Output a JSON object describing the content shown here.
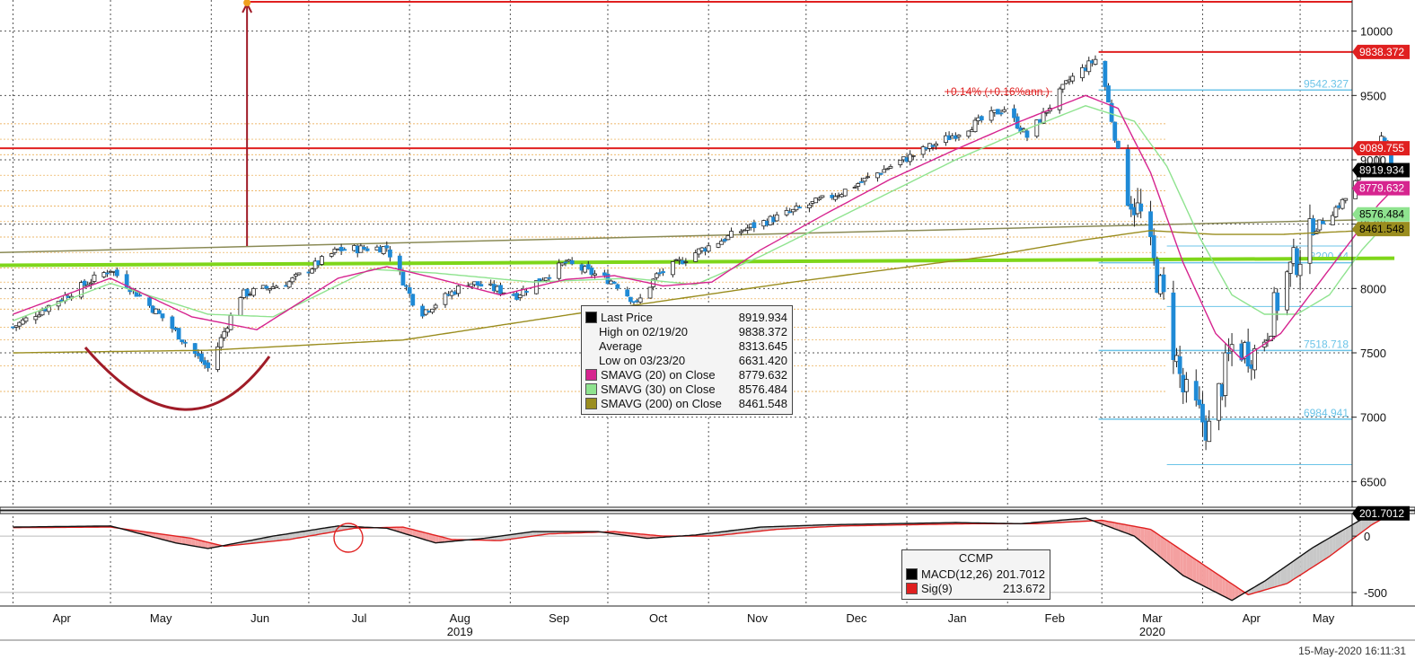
{
  "timestamp": "15-May-2020 16:11:31",
  "colors": {
    "up": "#ffffff",
    "down": "#1f8ad6",
    "sma20": "#d6248f",
    "sma30": "#8fe38f",
    "sma200": "#9a8d1f",
    "resistance": "#e02020",
    "fib": "#6cc4e8",
    "green_line": "#7fd61a",
    "annotation": "#a01c28",
    "macd": "#111111",
    "signal": "#e02020"
  },
  "chart_data": [
    {
      "type": "candlestick",
      "y_axis": {
        "ticks": [
          "10000",
          "9500",
          "9000",
          "8500",
          "8000",
          "7500",
          "7000",
          "6500"
        ],
        "range": [
          6300,
          10200
        ]
      },
      "x_axis": {
        "months": [
          "Apr",
          "May",
          "Jun",
          "Jul",
          "Aug",
          "Sep",
          "Oct",
          "Nov",
          "Dec",
          "Jan",
          "Feb",
          "Mar",
          "Apr",
          "May"
        ],
        "years": [
          "2019",
          "2020"
        ],
        "range_days": [
          -4,
          412
        ]
      },
      "anchors": [
        {
          "d": 0,
          "close": 7700
        },
        {
          "d": 30,
          "close": 8150
        },
        {
          "d": 47,
          "close": 7750
        },
        {
          "d": 60,
          "close": 7380
        },
        {
          "d": 70,
          "close": 7950
        },
        {
          "d": 85,
          "close": 8050
        },
        {
          "d": 100,
          "close": 8300
        },
        {
          "d": 115,
          "close": 8320
        },
        {
          "d": 125,
          "close": 7800
        },
        {
          "d": 140,
          "close": 8050
        },
        {
          "d": 155,
          "close": 7950
        },
        {
          "d": 170,
          "close": 8200
        },
        {
          "d": 185,
          "close": 8050
        },
        {
          "d": 192,
          "close": 7880
        },
        {
          "d": 198,
          "close": 8100
        },
        {
          "d": 210,
          "close": 8280
        },
        {
          "d": 225,
          "close": 8460
        },
        {
          "d": 240,
          "close": 8600
        },
        {
          "d": 255,
          "close": 8750
        },
        {
          "d": 270,
          "close": 8950
        },
        {
          "d": 290,
          "close": 9200
        },
        {
          "d": 305,
          "close": 9400
        },
        {
          "d": 312,
          "close": 9180
        },
        {
          "d": 325,
          "close": 9620
        },
        {
          "d": 333,
          "close": 9780
        },
        {
          "d": 336,
          "close": 9570
        },
        {
          "d": 342,
          "close": 8800
        },
        {
          "d": 347,
          "close": 8560
        },
        {
          "d": 354,
          "close": 7900
        },
        {
          "d": 360,
          "close": 7200
        },
        {
          "d": 368,
          "close": 6900
        },
        {
          "d": 375,
          "close": 7550
        },
        {
          "d": 383,
          "close": 7500
        },
        {
          "d": 392,
          "close": 8100
        },
        {
          "d": 400,
          "close": 8450
        },
        {
          "d": 410,
          "close": 8700
        },
        {
          "d": 421,
          "close": 9150
        },
        {
          "d": 425,
          "close": 8920
        }
      ],
      "sma20": [
        {
          "d": 0,
          "v": 7800
        },
        {
          "d": 30,
          "v": 8080
        },
        {
          "d": 55,
          "v": 7780
        },
        {
          "d": 75,
          "v": 7680
        },
        {
          "d": 100,
          "v": 8080
        },
        {
          "d": 115,
          "v": 8170
        },
        {
          "d": 130,
          "v": 8080
        },
        {
          "d": 150,
          "v": 7950
        },
        {
          "d": 170,
          "v": 8070
        },
        {
          "d": 185,
          "v": 8100
        },
        {
          "d": 200,
          "v": 8020
        },
        {
          "d": 215,
          "v": 8050
        },
        {
          "d": 230,
          "v": 8300
        },
        {
          "d": 250,
          "v": 8580
        },
        {
          "d": 270,
          "v": 8850
        },
        {
          "d": 290,
          "v": 9080
        },
        {
          "d": 310,
          "v": 9300
        },
        {
          "d": 330,
          "v": 9500
        },
        {
          "d": 340,
          "v": 9400
        },
        {
          "d": 350,
          "v": 8900
        },
        {
          "d": 360,
          "v": 8200
        },
        {
          "d": 370,
          "v": 7650
        },
        {
          "d": 378,
          "v": 7450
        },
        {
          "d": 390,
          "v": 7650
        },
        {
          "d": 405,
          "v": 8150
        },
        {
          "d": 420,
          "v": 8650
        },
        {
          "d": 425,
          "v": 8780
        }
      ],
      "sma30": [
        {
          "d": 0,
          "v": 7750
        },
        {
          "d": 30,
          "v": 8040
        },
        {
          "d": 60,
          "v": 7800
        },
        {
          "d": 80,
          "v": 7780
        },
        {
          "d": 110,
          "v": 8150
        },
        {
          "d": 130,
          "v": 8120
        },
        {
          "d": 160,
          "v": 8050
        },
        {
          "d": 190,
          "v": 8080
        },
        {
          "d": 210,
          "v": 8030
        },
        {
          "d": 230,
          "v": 8250
        },
        {
          "d": 250,
          "v": 8500
        },
        {
          "d": 270,
          "v": 8750
        },
        {
          "d": 290,
          "v": 9000
        },
        {
          "d": 310,
          "v": 9220
        },
        {
          "d": 330,
          "v": 9420
        },
        {
          "d": 345,
          "v": 9300
        },
        {
          "d": 355,
          "v": 8950
        },
        {
          "d": 365,
          "v": 8400
        },
        {
          "d": 375,
          "v": 7950
        },
        {
          "d": 385,
          "v": 7800
        },
        {
          "d": 395,
          "v": 7800
        },
        {
          "d": 405,
          "v": 7950
        },
        {
          "d": 415,
          "v": 8300
        },
        {
          "d": 425,
          "v": 8576
        }
      ],
      "sma200": [
        {
          "d": 0,
          "v": 7500
        },
        {
          "d": 60,
          "v": 7520
        },
        {
          "d": 120,
          "v": 7600
        },
        {
          "d": 180,
          "v": 7830
        },
        {
          "d": 240,
          "v": 8050
        },
        {
          "d": 300,
          "v": 8250
        },
        {
          "d": 330,
          "v": 8380
        },
        {
          "d": 350,
          "v": 8450
        },
        {
          "d": 370,
          "v": 8420
        },
        {
          "d": 390,
          "v": 8420
        },
        {
          "d": 425,
          "v": 8461
        }
      ],
      "trend_lines": [
        {
          "from": {
            "d": -4,
            "v": 8280
          },
          "to": {
            "d": 425,
            "v": 8540
          },
          "color": "#8a8a55"
        },
        {
          "from": {
            "d": -4,
            "v": 8180
          },
          "to": {
            "d": 425,
            "v": 8235
          },
          "color": "#7fd61a"
        }
      ],
      "resistance_levels": [
        {
          "label": "9838.372",
          "v": 9838.372
        },
        {
          "label": "9089.755",
          "v": 9089.755
        }
      ],
      "fib_levels": [
        {
          "label": "9542.327",
          "v": 9542.327
        },
        {
          "label": "8200.44",
          "v": 8200.44
        },
        {
          "label": "7518.718",
          "v": 7518.718
        },
        {
          "label": "6984.941",
          "v": 6984.941
        }
      ],
      "extra_levels": [
        {
          "v": 8330
        },
        {
          "v": 7860
        },
        {
          "v": 6631.42
        }
      ],
      "price_tags": [
        {
          "label": "9838.372",
          "v": 9838.372,
          "bg": "#e02020",
          "fg": "#ffffff"
        },
        {
          "label": "9089.755",
          "v": 9089.755,
          "bg": "#e02020",
          "fg": "#ffffff"
        },
        {
          "label": "8919.934",
          "v": 8919.934,
          "bg": "#000000",
          "fg": "#ffffff"
        },
        {
          "label": "8779.632",
          "v": 8779.632,
          "bg": "#d6248f",
          "fg": "#ffffff"
        },
        {
          "label": "8576.484",
          "v": 8576.484,
          "bg": "#8fe38f",
          "fg": "#000000"
        },
        {
          "label": "8461.548",
          "v": 8461.548,
          "bg": "#9a8d1f",
          "fg": "#000000"
        }
      ],
      "annotation_text": "+0.14% (+0.16%ann.)",
      "legend": [
        {
          "label": "Last Price",
          "value": "8919.934",
          "swatch": "#000000"
        },
        {
          "label": "High on 02/19/20",
          "value": "9838.372",
          "swatch": ""
        },
        {
          "label": "Average",
          "value": "8313.645",
          "swatch": ""
        },
        {
          "label": "Low on 03/23/20",
          "value": "6631.420",
          "swatch": ""
        },
        {
          "label": "SMAVG (20)  on Close",
          "value": "8779.632",
          "swatch": "#d6248f"
        },
        {
          "label": "SMAVG (30)  on Close",
          "value": "8576.484",
          "swatch": "#8fe38f"
        },
        {
          "label": "SMAVG (200)  on Close",
          "value": "8461.548",
          "swatch": "#9a8d1f"
        }
      ]
    },
    {
      "type": "macd",
      "y_axis": {
        "ticks": [
          "0",
          "-500"
        ],
        "range": [
          -620,
          200
        ]
      },
      "last_value": "201.7012",
      "title": "CCMP",
      "macd": [
        {
          "d": 0,
          "v": 80
        },
        {
          "d": 30,
          "v": 90
        },
        {
          "d": 50,
          "v": -60
        },
        {
          "d": 60,
          "v": -110
        },
        {
          "d": 80,
          "v": 0
        },
        {
          "d": 100,
          "v": 90
        },
        {
          "d": 115,
          "v": 70
        },
        {
          "d": 130,
          "v": -60
        },
        {
          "d": 145,
          "v": -20
        },
        {
          "d": 160,
          "v": 40
        },
        {
          "d": 180,
          "v": 40
        },
        {
          "d": 195,
          "v": -20
        },
        {
          "d": 210,
          "v": 10
        },
        {
          "d": 230,
          "v": 80
        },
        {
          "d": 250,
          "v": 100
        },
        {
          "d": 270,
          "v": 110
        },
        {
          "d": 290,
          "v": 120
        },
        {
          "d": 310,
          "v": 110
        },
        {
          "d": 330,
          "v": 160
        },
        {
          "d": 345,
          "v": 0
        },
        {
          "d": 360,
          "v": -350
        },
        {
          "d": 375,
          "v": -570
        },
        {
          "d": 385,
          "v": -400
        },
        {
          "d": 400,
          "v": -100
        },
        {
          "d": 415,
          "v": 150
        },
        {
          "d": 425,
          "v": 201.7
        }
      ],
      "signal": [
        {
          "d": 0,
          "v": 75
        },
        {
          "d": 30,
          "v": 80
        },
        {
          "d": 55,
          "v": -20
        },
        {
          "d": 65,
          "v": -90
        },
        {
          "d": 85,
          "v": -30
        },
        {
          "d": 105,
          "v": 70
        },
        {
          "d": 120,
          "v": 80
        },
        {
          "d": 135,
          "v": -30
        },
        {
          "d": 150,
          "v": -40
        },
        {
          "d": 165,
          "v": 20
        },
        {
          "d": 185,
          "v": 40
        },
        {
          "d": 200,
          "v": 0
        },
        {
          "d": 215,
          "v": 0
        },
        {
          "d": 235,
          "v": 60
        },
        {
          "d": 255,
          "v": 90
        },
        {
          "d": 275,
          "v": 100
        },
        {
          "d": 295,
          "v": 110
        },
        {
          "d": 315,
          "v": 110
        },
        {
          "d": 335,
          "v": 140
        },
        {
          "d": 350,
          "v": 60
        },
        {
          "d": 365,
          "v": -230
        },
        {
          "d": 380,
          "v": -520
        },
        {
          "d": 392,
          "v": -420
        },
        {
          "d": 405,
          "v": -180
        },
        {
          "d": 418,
          "v": 100
        },
        {
          "d": 425,
          "v": 213.67
        }
      ],
      "legend": [
        {
          "label": "MACD(12,26)",
          "value": "201.7012",
          "swatch": "#000000"
        },
        {
          "label": "Sig(9)",
          "value": "213.672",
          "swatch": "#e02020"
        }
      ]
    }
  ]
}
